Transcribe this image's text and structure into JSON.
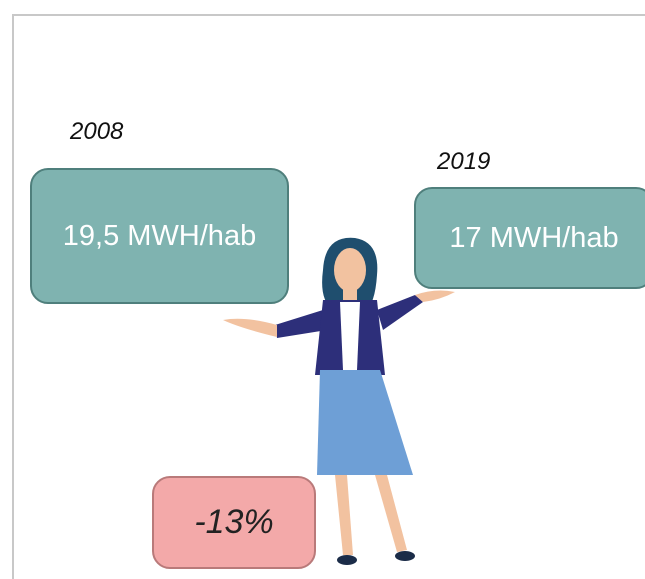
{
  "left": {
    "year": "2008",
    "value": "19,5 MWH/hab"
  },
  "right": {
    "year": "2019",
    "value": "17 MWH/hab"
  },
  "change": "-13%"
}
